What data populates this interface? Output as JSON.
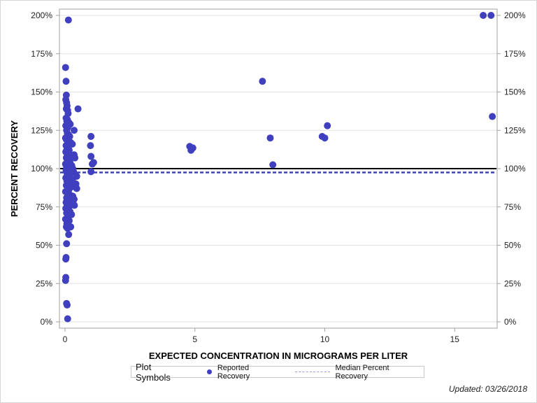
{
  "chart_data": {
    "type": "scatter",
    "title": "",
    "xlabel": "EXPECTED CONCENTRATION IN MICROGRAMS PER LITER",
    "ylabel": "PERCENT RECOVERY",
    "xlim": [
      -0.25,
      16.9
    ],
    "ylim": [
      -2,
      208
    ],
    "x_ticks": [
      0,
      5,
      10,
      15
    ],
    "y_ticks": [
      0,
      25,
      50,
      75,
      100,
      125,
      150,
      175,
      200
    ],
    "y_tick_labels": [
      "0%",
      "25%",
      "50%",
      "75%",
      "100%",
      "125%",
      "150%",
      "175%",
      "200%"
    ],
    "grid": "horizontal",
    "reference_lines": [
      {
        "name": "100% reference",
        "y": 100,
        "style": "solid",
        "color": "#000000"
      },
      {
        "name": "Median Percent Recovery",
        "y": 97.5,
        "style": "dashed",
        "color": "#3f3fbf"
      }
    ],
    "series": [
      {
        "name": "Reported Recovery",
        "color": "#3f3fbf",
        "points": [
          [
            0.13,
            197
          ],
          [
            0.02,
            166
          ],
          [
            0.04,
            157
          ],
          [
            0.05,
            148
          ],
          [
            0.03,
            145
          ],
          [
            0.06,
            143
          ],
          [
            0.08,
            141
          ],
          [
            0.05,
            139
          ],
          [
            0.1,
            138
          ],
          [
            0.12,
            136
          ],
          [
            0.04,
            133
          ],
          [
            0.09,
            132
          ],
          [
            0.07,
            131
          ],
          [
            0.15,
            130
          ],
          [
            0.2,
            129
          ],
          [
            0.03,
            128
          ],
          [
            0.11,
            127
          ],
          [
            0.06,
            125
          ],
          [
            0.09,
            123
          ],
          [
            0.14,
            122
          ],
          [
            0.18,
            121
          ],
          [
            0.02,
            120
          ],
          [
            0.05,
            119
          ],
          [
            0.1,
            118
          ],
          [
            0.22,
            117
          ],
          [
            0.28,
            116
          ],
          [
            0.04,
            115
          ],
          [
            0.12,
            114
          ],
          [
            0.08,
            113
          ],
          [
            0.16,
            112
          ],
          [
            0.03,
            111
          ],
          [
            0.07,
            110
          ],
          [
            0.2,
            109
          ],
          [
            0.35,
            109
          ],
          [
            0.11,
            108
          ],
          [
            0.25,
            108
          ],
          [
            0.05,
            107
          ],
          [
            0.15,
            106
          ],
          [
            0.38,
            107
          ],
          [
            0.09,
            105
          ],
          [
            0.19,
            104
          ],
          [
            0.02,
            103
          ],
          [
            0.13,
            102
          ],
          [
            0.26,
            102
          ],
          [
            0.06,
            101
          ],
          [
            0.1,
            100
          ],
          [
            0.3,
            100
          ],
          [
            0.04,
            99
          ],
          [
            0.17,
            99
          ],
          [
            0.33,
            98
          ],
          [
            0.08,
            97
          ],
          [
            0.22,
            97
          ],
          [
            0.12,
            96
          ],
          [
            0.45,
            95
          ],
          [
            0.03,
            94
          ],
          [
            0.16,
            94
          ],
          [
            0.29,
            93
          ],
          [
            0.07,
            92
          ],
          [
            0.2,
            91
          ],
          [
            0.1,
            90
          ],
          [
            0.42,
            90
          ],
          [
            0.05,
            89
          ],
          [
            0.24,
            88
          ],
          [
            0.45,
            87
          ],
          [
            0.14,
            86
          ],
          [
            0.02,
            85
          ],
          [
            0.09,
            84
          ],
          [
            0.18,
            83
          ],
          [
            0.3,
            82
          ],
          [
            0.06,
            81
          ],
          [
            0.35,
            80
          ],
          [
            0.12,
            79
          ],
          [
            0.04,
            78
          ],
          [
            0.22,
            78
          ],
          [
            0.32,
            77
          ],
          [
            0.08,
            76
          ],
          [
            0.15,
            75
          ],
          [
            0.36,
            76
          ],
          [
            0.03,
            74
          ],
          [
            0.11,
            73
          ],
          [
            0.19,
            72
          ],
          [
            0.06,
            71
          ],
          [
            0.14,
            70
          ],
          [
            0.25,
            70
          ],
          [
            0.09,
            68
          ],
          [
            0.02,
            67
          ],
          [
            0.16,
            66
          ],
          [
            0.07,
            64
          ],
          [
            0.12,
            63
          ],
          [
            0.05,
            62
          ],
          [
            0.22,
            62
          ],
          [
            0.1,
            61
          ],
          [
            0.14,
            57
          ],
          [
            0.06,
            51
          ],
          [
            0.04,
            42
          ],
          [
            0.03,
            41
          ],
          [
            0.03,
            29
          ],
          [
            0.02,
            27
          ],
          [
            0.06,
            12
          ],
          [
            0.08,
            11
          ],
          [
            0.1,
            2
          ],
          [
            0.5,
            139
          ],
          [
            0.35,
            125
          ],
          [
            1.0,
            121
          ],
          [
            0.98,
            115
          ],
          [
            1.0,
            108
          ],
          [
            1.1,
            104
          ],
          [
            1.05,
            103
          ],
          [
            1.0,
            98
          ],
          [
            4.8,
            114.5
          ],
          [
            4.85,
            112
          ],
          [
            4.92,
            113.5
          ],
          [
            7.6,
            157
          ],
          [
            7.9,
            120
          ],
          [
            8.0,
            102.5
          ],
          [
            9.9,
            121
          ],
          [
            10.0,
            120
          ],
          [
            10.1,
            128
          ],
          [
            16.1,
            200
          ],
          [
            16.4,
            200
          ],
          [
            16.45,
            134
          ]
        ]
      }
    ],
    "legend_position": "bottom"
  },
  "legend": {
    "title": "Plot Symbols",
    "items": [
      {
        "label": "Reported Recovery",
        "type": "marker",
        "color": "#3f3fbf"
      },
      {
        "label": "Median Percent Recovery",
        "type": "dashed-line",
        "color": "#9a9ae0"
      }
    ]
  },
  "footer": {
    "updated": "Updated: 03/26/2018"
  }
}
